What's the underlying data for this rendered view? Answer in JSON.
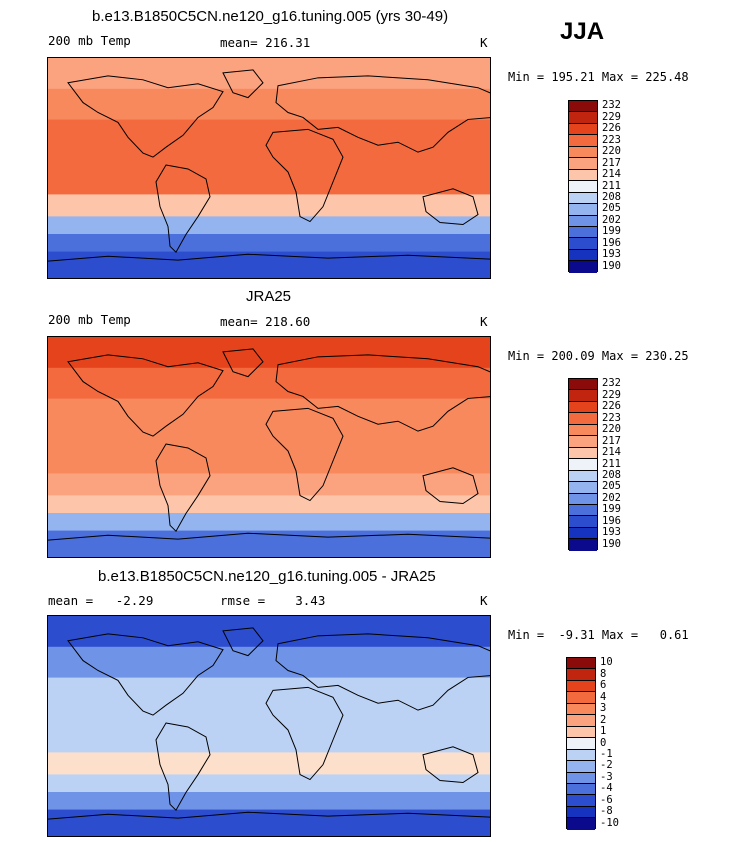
{
  "season": "JJA",
  "panels": [
    {
      "title": "b.e13.B1850C5CN.ne120_g16.tuning.005 (yrs 30-49)",
      "left_label": "200 mb Temp",
      "center_label": "mean= 216.31",
      "right_label": "K",
      "minmax": "Min = 195.21 Max = 225.48",
      "colorbar": {
        "labels": [
          "232",
          "229",
          "226",
          "223",
          "220",
          "217",
          "214",
          "211",
          "208",
          "205",
          "202",
          "199",
          "196",
          "193",
          "190"
        ],
        "colors": [
          "#8b0a0a",
          "#c1240f",
          "#e5431c",
          "#f26a3d",
          "#f7895c",
          "#fba27f",
          "#fdc6ab",
          "#eef3fa",
          "#bcd2f4",
          "#93b4ee",
          "#6f93e6",
          "#4b6fdb",
          "#2d4dcf",
          "#1533be",
          "#0b0a8c"
        ]
      },
      "map_colors": [
        "#fba27f",
        "#f7895c",
        "#f26a3d",
        "#fdc6ab",
        "#93b4ee",
        "#4b6fdb",
        "#2d4dcf"
      ]
    },
    {
      "title": "JRA25",
      "left_label": "200 mb Temp",
      "center_label": "mean= 218.60",
      "right_label": "K",
      "minmax": "Min = 200.09 Max = 230.25",
      "colorbar": {
        "labels": [
          "232",
          "229",
          "226",
          "223",
          "220",
          "217",
          "214",
          "211",
          "208",
          "205",
          "202",
          "199",
          "196",
          "193",
          "190"
        ],
        "colors": [
          "#8b0a0a",
          "#c1240f",
          "#e5431c",
          "#f26a3d",
          "#f7895c",
          "#fba27f",
          "#fdc6ab",
          "#eef3fa",
          "#bcd2f4",
          "#93b4ee",
          "#6f93e6",
          "#4b6fdb",
          "#2d4dcf",
          "#1533be",
          "#0b0a8c"
        ]
      },
      "map_colors": [
        "#e5431c",
        "#f26a3d",
        "#f7895c",
        "#fba27f",
        "#fdc6ab",
        "#93b4ee",
        "#4b6fdb"
      ]
    },
    {
      "title": "b.e13.B1850C5CN.ne120_g16.tuning.005 - JRA25",
      "left_label": "mean =   -2.29",
      "center_label": "rmse =    3.43",
      "right_label": "K",
      "minmax": "Min =  -9.31 Max =   0.61",
      "colorbar": {
        "labels": [
          "10",
          "8",
          "6",
          "4",
          "3",
          "2",
          "1",
          "0",
          "-1",
          "-2",
          "-3",
          "-4",
          "-6",
          "-8",
          "-10"
        ],
        "colors": [
          "#8b0a0a",
          "#c1240f",
          "#e5431c",
          "#f26a3d",
          "#f7895c",
          "#fba27f",
          "#fdc6ab",
          "#eef3fa",
          "#bcd2f4",
          "#93b4ee",
          "#6f93e6",
          "#4b6fdb",
          "#2d4dcf",
          "#1533be",
          "#0b0a8c"
        ]
      },
      "map_colors": [
        "#2d4dcf",
        "#6f93e6",
        "#bcd2f4",
        "#fce0cc",
        "#bcd2f4",
        "#6f93e6",
        "#2d4dcf"
      ]
    }
  ]
}
